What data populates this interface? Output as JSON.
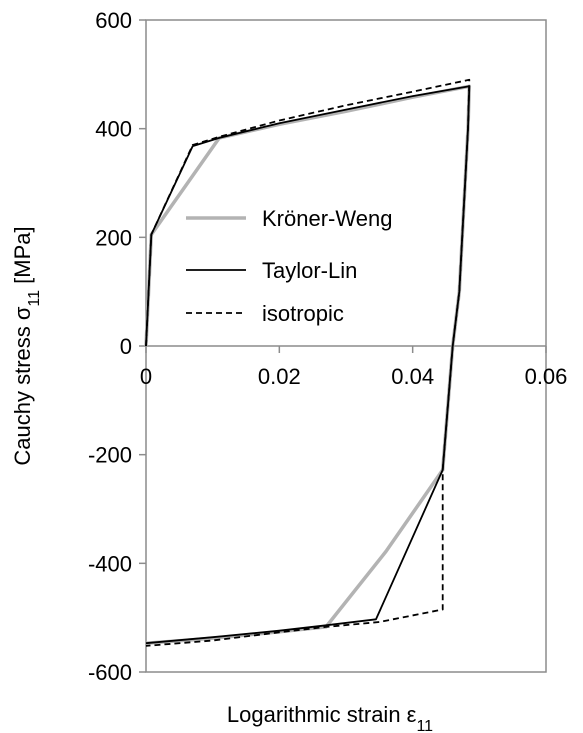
{
  "chart_data": {
    "type": "line",
    "xlabel": "Logarithmic strain ε",
    "xlabel_sub": "11",
    "ylabel": "Cauchy stress σ",
    "ylabel_sub": "11",
    "ylabel_unit": " [MPa]",
    "xlim": [
      0,
      0.06
    ],
    "ylim": [
      -600,
      600
    ],
    "xticks": [
      0,
      0.02,
      0.04,
      0.06
    ],
    "xtick_labels": [
      "0",
      "0.02",
      "0.04",
      "0.06"
    ],
    "yticks": [
      -600,
      -400,
      -200,
      0,
      200,
      400,
      600
    ],
    "ytick_labels": [
      "-600",
      "-400",
      "-200",
      "0",
      "200",
      "400",
      "600"
    ],
    "grid": false,
    "legend_position": "center",
    "series": [
      {
        "name": "Kröner-Weng",
        "color": "#b3b3b3",
        "dash": "solid",
        "x": [
          0,
          0.0008,
          0.011,
          0.02,
          0.03,
          0.04,
          0.0485,
          0.0483,
          0.047,
          0.046,
          0.0445,
          0.036,
          0.027,
          0.02,
          0.01,
          0
        ],
        "y": [
          0,
          205,
          383,
          408,
          432,
          458,
          478,
          400,
          100,
          0,
          -228,
          -378,
          -517,
          -526,
          -538,
          -547
        ]
      },
      {
        "name": "Taylor-Lin",
        "color": "#000000",
        "dash": "solid",
        "x": [
          0,
          0.0008,
          0.007,
          0.011,
          0.02,
          0.03,
          0.04,
          0.0485,
          0.0483,
          0.047,
          0.046,
          0.0445,
          0.0345,
          0.027,
          0.02,
          0.01,
          0
        ],
        "y": [
          0,
          205,
          368,
          383,
          410,
          435,
          460,
          478,
          400,
          100,
          0,
          -228,
          -503,
          -514,
          -524,
          -536,
          -547
        ]
      },
      {
        "name": "isotropic",
        "color": "#000000",
        "dash": "dashed",
        "x": [
          0,
          0.0008,
          0.007,
          0.011,
          0.02,
          0.03,
          0.04,
          0.0485,
          0.0483,
          0.047,
          0.046,
          0.0445,
          0.0445,
          0.035,
          0.027,
          0.02,
          0.01,
          0
        ],
        "y": [
          0,
          205,
          370,
          385,
          415,
          443,
          468,
          490,
          400,
          100,
          0,
          -228,
          -485,
          -508,
          -517,
          -527,
          -542,
          -552
        ]
      }
    ]
  }
}
